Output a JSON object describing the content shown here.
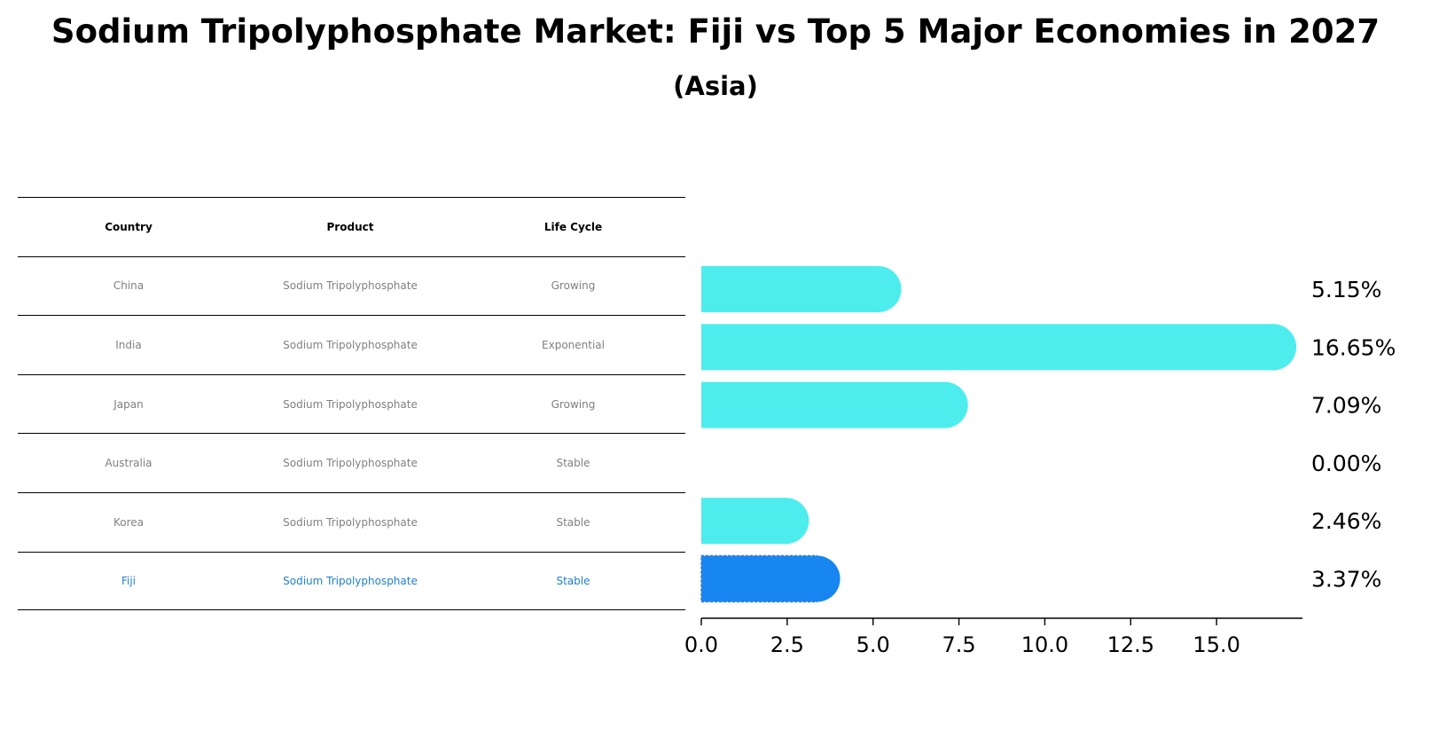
{
  "title": "Sodium Tripolyphosphate Market: Fiji vs Top 5 Major Economies in 2027",
  "subtitle": "(Asia)",
  "table": {
    "headers": [
      "Country",
      "Product",
      "Life Cycle"
    ],
    "rows": [
      {
        "country": "China",
        "product": "Sodium Tripolyphosphate",
        "life_cycle": "Growing"
      },
      {
        "country": "India",
        "product": "Sodium Tripolyphosphate",
        "life_cycle": "Exponential"
      },
      {
        "country": "Japan",
        "product": "Sodium Tripolyphosphate",
        "life_cycle": "Growing"
      },
      {
        "country": "Australia",
        "product": "Sodium Tripolyphosphate",
        "life_cycle": "Stable"
      },
      {
        "country": "Korea",
        "product": "Sodium Tripolyphosphate",
        "life_cycle": "Stable"
      },
      {
        "country": "Fiji",
        "product": "Sodium Tripolyphosphate",
        "life_cycle": "Stable"
      }
    ]
  },
  "chart_data": {
    "type": "bar",
    "orientation": "horizontal",
    "categories": [
      "China",
      "India",
      "Japan",
      "Australia",
      "Korea",
      "Fiji"
    ],
    "values": [
      5.15,
      16.65,
      7.09,
      0.0,
      2.46,
      3.37
    ],
    "value_labels": [
      "5.15%",
      "16.65%",
      "7.09%",
      "0.00%",
      "2.46%",
      "3.37%"
    ],
    "highlight": "Fiji",
    "xlim": [
      0,
      17.5
    ],
    "xticks": [
      0.0,
      2.5,
      5.0,
      7.5,
      10.0,
      12.5,
      15.0
    ],
    "xtick_labels": [
      "0.0",
      "2.5",
      "5.0",
      "7.5",
      "10.0",
      "12.5",
      "15.0"
    ],
    "colors": {
      "default": "#4deded",
      "highlight": "#1886f0",
      "highlight_text": "#1f7fcf",
      "muted_text": "#808080"
    }
  }
}
